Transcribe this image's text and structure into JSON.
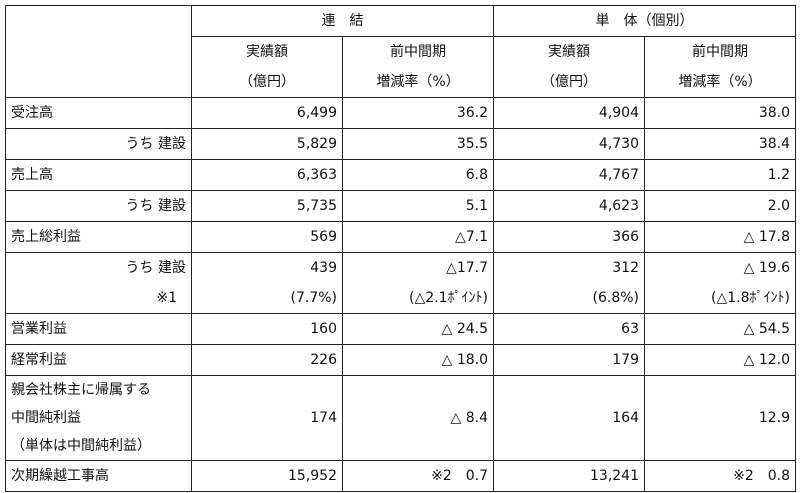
{
  "header": {
    "group_consolidated": "連　結",
    "group_standalone": "単　体（個別）",
    "col_actual_line1": "実績額",
    "col_actual_line2": "（億円）",
    "col_rate_line1": "前中間期",
    "col_rate_line2": "増減率（%）"
  },
  "rows": [
    {
      "label": "受注高",
      "c_actual": "6,499",
      "c_rate": "36.2",
      "s_actual": "4,904",
      "s_rate": "38.0"
    },
    {
      "label": "うち 建設",
      "c_actual": "5,829",
      "c_rate": "35.5",
      "s_actual": "4,730",
      "s_rate": "38.4"
    },
    {
      "label": "売上高",
      "c_actual": "6,363",
      "c_rate": "6.8",
      "s_actual": "4,767",
      "s_rate": "1.2"
    },
    {
      "label": "うち 建設",
      "c_actual": "5,735",
      "c_rate": "5.1",
      "s_actual": "4,623",
      "s_rate": "2.0"
    },
    {
      "label": "売上総利益",
      "c_actual": "569",
      "c_rate": "△7.1",
      "s_actual": "366",
      "s_rate": "△ 17.8"
    },
    {
      "label": "うち 建設",
      "c_actual": "439",
      "c_rate": "△17.7",
      "s_actual": "312",
      "s_rate": "△ 19.6"
    },
    {
      "label": "※1",
      "c_actual": "(7.7%)",
      "c_rate": "(△2.1ﾎﾟｲﾝﾄ)",
      "s_actual": "(6.8%)",
      "s_rate": "(△1.8ﾎﾟｲﾝﾄ)"
    },
    {
      "label": "営業利益",
      "c_actual": "160",
      "c_rate": "△ 24.5",
      "s_actual": "63",
      "s_rate": "△ 54.5"
    },
    {
      "label": "経常利益",
      "c_actual": "226",
      "c_rate": "△ 18.0",
      "s_actual": "179",
      "s_rate": "△ 12.0"
    },
    {
      "label_line1": "親会社株主に帰属する",
      "label_line2": "中間純利益",
      "label_line3": "（単体は中間純利益）",
      "c_actual": "174",
      "c_rate": "△ 8.4",
      "s_actual": "164",
      "s_rate": "12.9"
    },
    {
      "label": "次期繰越工事高",
      "c_actual": "15,952",
      "c_rate": "※2　0.7",
      "s_actual": "13,241",
      "s_rate": "※2　0.8"
    }
  ]
}
